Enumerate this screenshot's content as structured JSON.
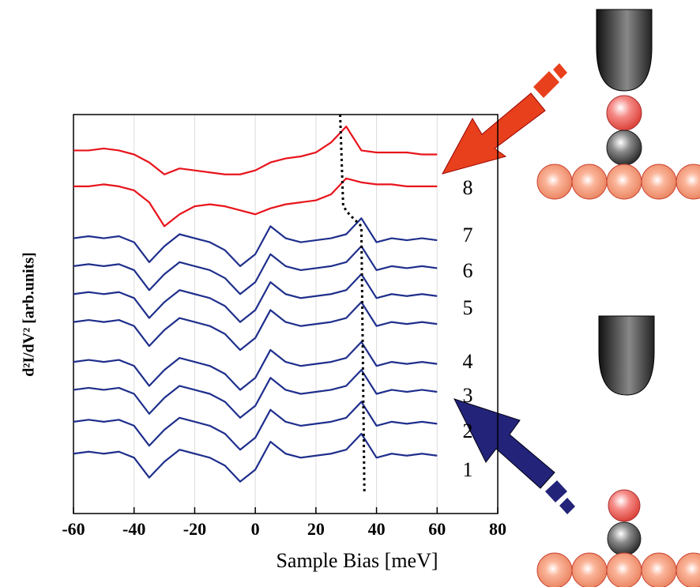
{
  "chart_data": {
    "type": "line",
    "x_label": "Sample Bias [meV]",
    "y_label": "d²I/dV² [arb.units]",
    "x": [
      -60,
      -55,
      -50,
      -45,
      -40,
      -35,
      -30,
      -25,
      -20,
      -15,
      -10,
      -5,
      0,
      5,
      10,
      15,
      20,
      25,
      30,
      35,
      40,
      45,
      50,
      55,
      60
    ],
    "series": [
      {
        "color": "#e8141c",
        "values": [
          91,
          91,
          91.5,
          91,
          90,
          88,
          85,
          86.5,
          86,
          85.5,
          85,
          85,
          86,
          88,
          89,
          89.5,
          90.5,
          93,
          97,
          91,
          90.5,
          90.5,
          90.5,
          90,
          90
        ]
      },
      {
        "color": "#e8141c",
        "values": [
          82,
          82,
          82.5,
          82,
          81,
          78,
          72,
          75,
          77,
          77.5,
          77,
          76,
          75,
          76.5,
          77.5,
          78,
          78.5,
          80,
          84,
          83,
          82.5,
          82.5,
          82,
          82,
          82
        ]
      },
      {
        "color": "#1f2f8c",
        "values": [
          69,
          69.5,
          69,
          69.5,
          68,
          63,
          67,
          70,
          69,
          68,
          66,
          62,
          65,
          72,
          69,
          68,
          68.5,
          69,
          70,
          74,
          68,
          69,
          68.5,
          69,
          68.5
        ]
      },
      {
        "color": "#1f2f8c",
        "values": [
          62,
          62.5,
          62,
          62.5,
          61,
          56,
          60,
          63,
          62,
          61,
          59,
          55,
          58,
          65,
          62,
          61,
          61.5,
          62,
          63,
          67,
          61,
          62,
          61.5,
          62,
          61.5
        ]
      },
      {
        "color": "#1f2f8c",
        "values": [
          55,
          55.5,
          55,
          55.5,
          54,
          49,
          53,
          56,
          55,
          54,
          52,
          48,
          51,
          58,
          55,
          54,
          54.5,
          55,
          56,
          60,
          54,
          55,
          54.5,
          55,
          54.5
        ]
      },
      {
        "color": "#1f2f8c",
        "values": [
          48,
          48.5,
          48,
          48.5,
          47,
          42,
          46,
          49,
          48,
          47,
          45,
          41,
          44,
          51,
          48,
          47,
          47.5,
          48,
          49,
          53,
          47,
          48,
          47.5,
          48,
          47.5
        ]
      },
      {
        "color": "#1f2f8c",
        "values": [
          38,
          38.5,
          38,
          38.5,
          37,
          32,
          36,
          39,
          38,
          37,
          35,
          31,
          34,
          41,
          38,
          37,
          37.5,
          38,
          39,
          43,
          37,
          38,
          37.5,
          38,
          37.5
        ]
      },
      {
        "color": "#1f2f8c",
        "values": [
          31,
          31.5,
          31,
          31.5,
          30,
          25,
          29,
          32,
          31,
          30,
          28,
          24,
          27,
          34,
          31,
          30,
          30.5,
          31,
          32,
          36,
          30,
          31,
          30.5,
          31,
          30.5
        ]
      },
      {
        "color": "#1f2f8c",
        "values": [
          23,
          23.5,
          23,
          23.5,
          22,
          17,
          21,
          24,
          23,
          22,
          20,
          16,
          19,
          26,
          23,
          22,
          22.5,
          23,
          24,
          28,
          22,
          23,
          22.5,
          23,
          22.5
        ]
      },
      {
        "color": "#1f2f8c",
        "values": [
          15,
          15.5,
          15,
          15.5,
          14,
          9,
          13,
          16,
          15,
          14,
          12,
          8,
          11,
          18,
          15,
          14,
          14.5,
          15,
          16,
          20,
          14,
          15,
          14.5,
          15,
          14.5
        ]
      }
    ],
    "guide": {
      "x": [
        28,
        29,
        31,
        35,
        36
      ],
      "y": [
        100,
        77,
        75,
        72,
        5
      ],
      "color": "#000000"
    },
    "annotations": [
      "8",
      "7",
      "6",
      "5",
      "4",
      "3",
      "2",
      "1"
    ],
    "xlim": [
      -60,
      80
    ],
    "ylim": [
      0,
      100
    ],
    "xticks": [
      -60,
      -40,
      -20,
      0,
      20,
      40,
      60,
      80
    ],
    "grid": true
  }
}
